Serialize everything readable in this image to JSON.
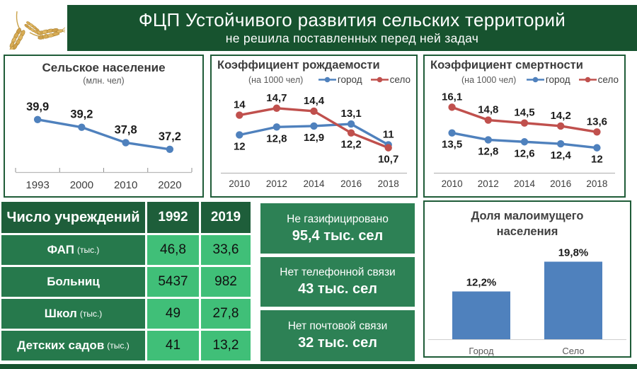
{
  "header": {
    "title": "ФЦП Устойчивого развития сельских территорий",
    "subtitle": "не решила поставленных перед ней задач"
  },
  "colors": {
    "banner_green": "#17532f",
    "panel_border": "#1f5c38",
    "table_header_green": "#1e5e3a",
    "table_label_green": "#26794c",
    "table_value_green": "#40bf78",
    "info_box_green": "#2d8155",
    "line_blue": "#4f81bd",
    "line_red": "#c0504d",
    "bar_blue": "#4f81bd"
  },
  "chart_data": [
    {
      "type": "line",
      "title": "Сельское население",
      "subtitle": "(млн. чел)",
      "categories": [
        "1993",
        "2000",
        "2010",
        "2020"
      ],
      "ylim": [
        36.8,
        40.4
      ],
      "grid": false,
      "legend_position": "none",
      "series": [
        {
          "name": "сельское население",
          "color": "#4f81bd",
          "values": [
            39.9,
            39.2,
            37.8,
            37.2
          ],
          "labels": [
            "39,9",
            "39,2",
            "37,8",
            "37,2"
          ],
          "label_side": [
            "above",
            "above",
            "above",
            "above"
          ]
        }
      ]
    },
    {
      "type": "line",
      "title": "Коэффициент рождаемости",
      "subtitle": "(на 1000 чел)",
      "categories": [
        "2010",
        "2012",
        "2014",
        "2016",
        "2018"
      ],
      "ylim": [
        9.6,
        15.9
      ],
      "grid": false,
      "legend_position": "top-right",
      "series": [
        {
          "name": "город",
          "color": "#4f81bd",
          "values": [
            12,
            12.8,
            12.9,
            13.1,
            11
          ],
          "labels": [
            "12",
            "12,8",
            "12,9",
            "13,1",
            "11"
          ],
          "label_side": [
            "below",
            "below",
            "below",
            "above",
            "above"
          ]
        },
        {
          "name": "село",
          "color": "#c0504d",
          "values": [
            14,
            14.7,
            14.4,
            12.2,
            10.7
          ],
          "labels": [
            "14",
            "14,7",
            "14,4",
            "12,2",
            "10,7"
          ],
          "label_side": [
            "above",
            "above",
            "above",
            "below",
            "below"
          ]
        }
      ]
    },
    {
      "type": "line",
      "title": "Коэффициент смертности",
      "subtitle": "(на 1000 чел)",
      "categories": [
        "2010",
        "2012",
        "2014",
        "2016",
        "2018"
      ],
      "ylim": [
        10.9,
        17.2
      ],
      "grid": false,
      "legend_position": "top-right",
      "series": [
        {
          "name": "город",
          "color": "#4f81bd",
          "values": [
            13.5,
            12.8,
            12.6,
            12.4,
            12
          ],
          "labels": [
            "13,5",
            "12,8",
            "12,6",
            "12,4",
            "12"
          ],
          "label_side": [
            "below",
            "below",
            "below",
            "below",
            "below"
          ]
        },
        {
          "name": "село",
          "color": "#c0504d",
          "values": [
            16.1,
            14.8,
            14.5,
            14.2,
            13.6
          ],
          "labels": [
            "16,1",
            "14,8",
            "14,5",
            "14,2",
            "13,6"
          ],
          "label_side": [
            "above",
            "above",
            "above",
            "above",
            "above"
          ]
        }
      ]
    },
    {
      "type": "bar",
      "title": "Доля малоимущего населения",
      "categories": [
        "Город",
        "Село"
      ],
      "values": [
        12.2,
        19.8
      ],
      "labels": [
        "12,2%",
        "19,8%"
      ],
      "bar_color": "#4f81bd",
      "ylim": [
        0,
        23.5
      ],
      "grid": false,
      "legend_position": "none"
    }
  ],
  "table": {
    "title": "Число учреждений",
    "columns": [
      "1992",
      "2019"
    ],
    "rows": [
      {
        "label": "ФАП",
        "unit": "(тыс.)",
        "v1992": "46,8",
        "v2019": "33,6"
      },
      {
        "label": "Больниц",
        "unit": "",
        "v1992": "5437",
        "v2019": "982"
      },
      {
        "label": "Школ",
        "unit": "(тыс.)",
        "v1992": "49",
        "v2019": "27,8"
      },
      {
        "label": "Детских садов",
        "unit": "(тыс.)",
        "v1992": "41",
        "v2019": "13,2"
      }
    ]
  },
  "info_boxes": [
    {
      "line1": "Не газифицировано",
      "line2": "95,4 тыс. сел"
    },
    {
      "line1": "Нет телефонной связи",
      "line2": "43 тыс. сел"
    },
    {
      "line1": "Нет почтовой связи",
      "line2": "32 тыс. сел"
    }
  ]
}
